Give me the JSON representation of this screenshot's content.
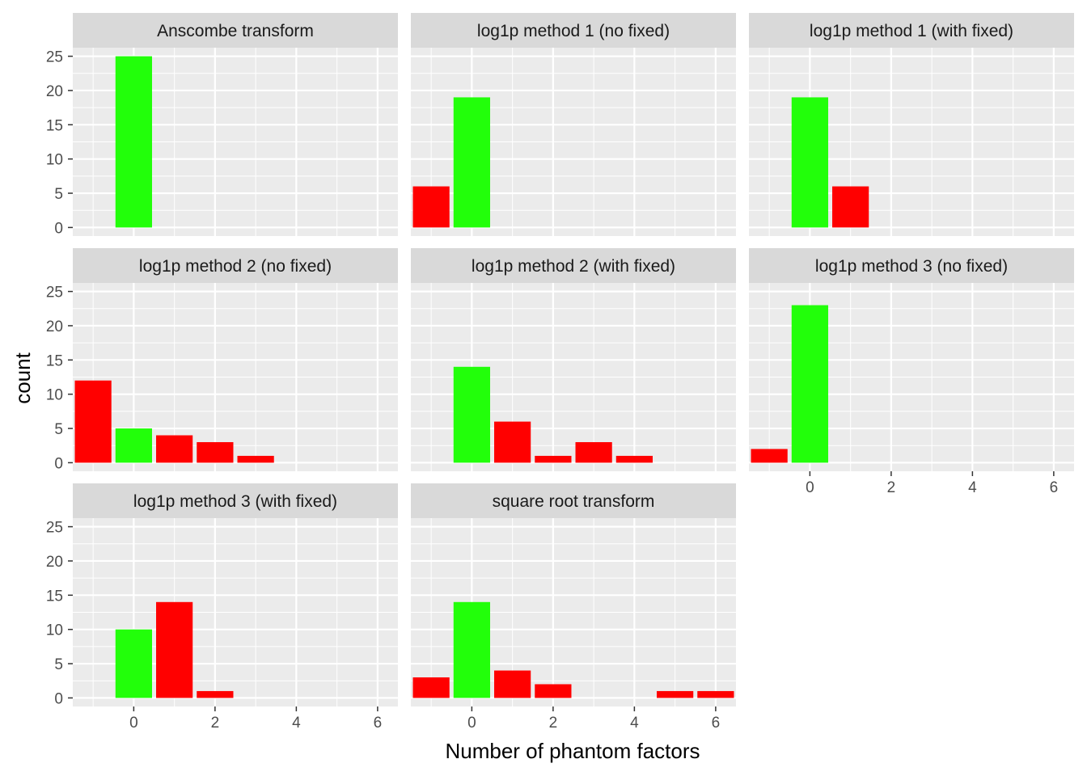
{
  "chart_data": {
    "type": "bar",
    "xlabel": "Number of phantom factors",
    "ylabel": "count",
    "xlim": [
      -1.5,
      6.5
    ],
    "ylim": [
      -1.25,
      26.25
    ],
    "x_ticks": [
      0,
      2,
      4,
      6
    ],
    "y_ticks": [
      0,
      5,
      10,
      15,
      20,
      25
    ],
    "grid": true,
    "legend": "none",
    "colors": {
      "correct": "#22FF0A",
      "wrong": "#FF0000",
      "panel_bg": "#EBEBEB",
      "strip_bg": "#D9D9D9"
    },
    "facets": [
      {
        "title": "Anscombe transform",
        "bars": [
          {
            "x": 0,
            "count": 25
          }
        ]
      },
      {
        "title": "log1p method 1 (no fixed)",
        "bars": [
          {
            "x": -1,
            "count": 6
          },
          {
            "x": 0,
            "count": 19
          }
        ]
      },
      {
        "title": "log1p method 1 (with fixed)",
        "bars": [
          {
            "x": 0,
            "count": 19
          },
          {
            "x": 1,
            "count": 6
          }
        ]
      },
      {
        "title": "log1p method 2 (no fixed)",
        "bars": [
          {
            "x": -1,
            "count": 12
          },
          {
            "x": 0,
            "count": 5
          },
          {
            "x": 1,
            "count": 4
          },
          {
            "x": 2,
            "count": 3
          },
          {
            "x": 3,
            "count": 1
          }
        ]
      },
      {
        "title": "log1p method 2 (with fixed)",
        "bars": [
          {
            "x": 0,
            "count": 14
          },
          {
            "x": 1,
            "count": 6
          },
          {
            "x": 2,
            "count": 1
          },
          {
            "x": 3,
            "count": 3
          },
          {
            "x": 4,
            "count": 1
          }
        ]
      },
      {
        "title": "log1p method 3 (no fixed)",
        "bars": [
          {
            "x": -1,
            "count": 2
          },
          {
            "x": 0,
            "count": 23
          }
        ]
      },
      {
        "title": "log1p method 3 (with fixed)",
        "bars": [
          {
            "x": 0,
            "count": 10
          },
          {
            "x": 1,
            "count": 14
          },
          {
            "x": 2,
            "count": 1
          }
        ]
      },
      {
        "title": "square root transform",
        "bars": [
          {
            "x": -1,
            "count": 3
          },
          {
            "x": 0,
            "count": 14
          },
          {
            "x": 1,
            "count": 4
          },
          {
            "x": 2,
            "count": 2
          },
          {
            "x": 5,
            "count": 1
          },
          {
            "x": 6,
            "count": 1
          }
        ]
      }
    ]
  }
}
